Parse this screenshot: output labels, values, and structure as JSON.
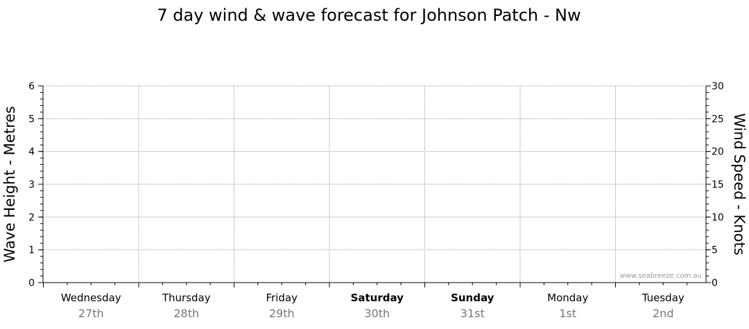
{
  "chart_data": {
    "type": "line",
    "title": "7 day wind & wave forecast for Johnson Patch - Nw",
    "ylabel_left": "Wave Height - Metres",
    "ylabel_right": "Wind Speed - Knots",
    "ylim_left": [
      0,
      6
    ],
    "ylim_right": [
      0,
      30
    ],
    "left_ticks": [
      "0",
      "1",
      "2",
      "3",
      "4",
      "5",
      "6"
    ],
    "right_ticks": [
      "0",
      "5",
      "10",
      "15",
      "20",
      "25",
      "30"
    ],
    "days": [
      {
        "day": "Wednesday",
        "date": "27th",
        "weekend": false
      },
      {
        "day": "Thursday",
        "date": "28th",
        "weekend": false
      },
      {
        "day": "Friday",
        "date": "29th",
        "weekend": false
      },
      {
        "day": "Saturday",
        "date": "30th",
        "weekend": true
      },
      {
        "day": "Sunday",
        "date": "31st",
        "weekend": true
      },
      {
        "day": "Monday",
        "date": "1st",
        "weekend": false
      },
      {
        "day": "Tuesday",
        "date": "2nd",
        "weekend": false
      }
    ],
    "series": [],
    "grid": true,
    "watermark": "www.seabreeze.com.au"
  }
}
